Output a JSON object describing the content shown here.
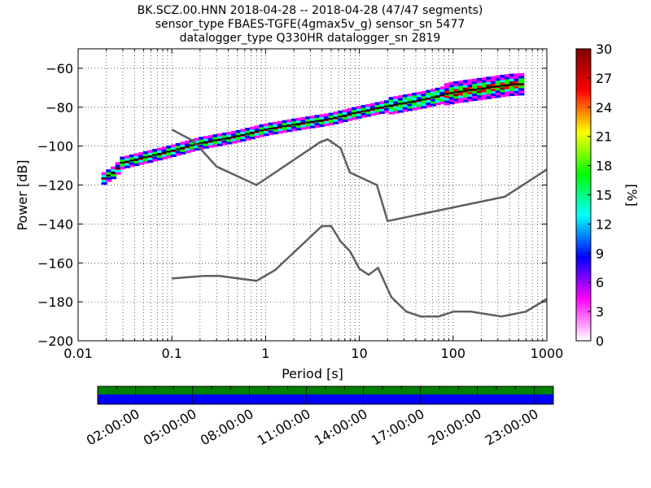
{
  "chart_data": {
    "type": "heatmap",
    "title_lines": [
      "BK.SCZ.00.HNN   2018-04-28 -- 2018-04-28  (47/47 segments)",
      "sensor_type FBAES-TGFE(4gmax5v_g) sensor_sn 5477",
      "datalogger_type Q330HR datalogger_sn 2819"
    ],
    "xlabel": "Period [s]",
    "ylabel": "Power [dB]",
    "xscale": "log",
    "xlim": [
      0.01,
      1000
    ],
    "ylim": [
      -200,
      -50
    ],
    "x_ticks": [
      {
        "value": 0.01,
        "label": "0.01"
      },
      {
        "value": 0.1,
        "label": "0.1"
      },
      {
        "value": 1,
        "label": "1"
      },
      {
        "value": 10,
        "label": "10"
      },
      {
        "value": 100,
        "label": "100"
      },
      {
        "value": 1000,
        "label": "1000"
      }
    ],
    "y_ticks": [
      {
        "value": -60,
        "label": "−60"
      },
      {
        "value": -80,
        "label": "−80"
      },
      {
        "value": -100,
        "label": "−100"
      },
      {
        "value": -120,
        "label": "−120"
      },
      {
        "value": -140,
        "label": "−140"
      },
      {
        "value": -160,
        "label": "−160"
      },
      {
        "value": -180,
        "label": "−180"
      },
      {
        "value": -200,
        "label": "−200"
      }
    ],
    "grid": true,
    "colorbar": {
      "label": "[%]",
      "min": 0,
      "max": 30,
      "ticks": [
        {
          "value": 0,
          "label": "0"
        },
        {
          "value": 3,
          "label": "3"
        },
        {
          "value": 6,
          "label": "6"
        },
        {
          "value": 9,
          "label": "9"
        },
        {
          "value": 12,
          "label": "12"
        },
        {
          "value": 15,
          "label": "15"
        },
        {
          "value": 18,
          "label": "18"
        },
        {
          "value": 21,
          "label": "21"
        },
        {
          "value": 24,
          "label": "24"
        },
        {
          "value": 27,
          "label": "27"
        },
        {
          "value": 30,
          "label": "30"
        }
      ],
      "colors": [
        "#ffffff",
        "#ff00ff",
        "#0000ff",
        "#00ffff",
        "#00ff00",
        "#ffff00",
        "#ff0000",
        "#800000"
      ]
    },
    "psd_band": [
      {
        "period": 0.019,
        "center": -116.5,
        "spread": 1.5
      },
      {
        "period": 0.025,
        "center": -113,
        "spread": 1.5
      },
      {
        "period": 0.03,
        "center": -108.5,
        "spread": 1.5
      },
      {
        "period": 0.05,
        "center": -106,
        "spread": 1.5
      },
      {
        "period": 0.1,
        "center": -102.5,
        "spread": 1.5
      },
      {
        "period": 0.2,
        "center": -98.5,
        "spread": 1.5
      },
      {
        "period": 0.5,
        "center": -95,
        "spread": 1.5
      },
      {
        "period": 1,
        "center": -91.5,
        "spread": 1.5
      },
      {
        "period": 2,
        "center": -89,
        "spread": 1.5
      },
      {
        "period": 5,
        "center": -86,
        "spread": 2
      },
      {
        "period": 10,
        "center": -82.5,
        "spread": 2
      },
      {
        "period": 20,
        "center": -79.5,
        "spread": 2.5
      },
      {
        "period": 50,
        "center": -76,
        "spread": 3
      },
      {
        "period": 100,
        "center": -72.5,
        "spread": 4
      },
      {
        "period": 200,
        "center": -70.5,
        "spread": 4.5
      },
      {
        "period": 400,
        "center": -68.5,
        "spread": 5
      },
      {
        "period": 600,
        "center": -68,
        "spread": 5
      }
    ],
    "series": [
      {
        "color": "#5f5f5f",
        "x": [
          0.1,
          0.17,
          0.3,
          0.8,
          3.8,
          4.6,
          6.3,
          7.9,
          15.4,
          20.0,
          354.8,
          1000
        ],
        "y": [
          -91.5,
          -97.4,
          -110.5,
          -120.0,
          -98.0,
          -96.5,
          -101.0,
          -113.5,
          -120.0,
          -138.5,
          -126.0,
          -112.0
        ]
      },
      {
        "color": "#5f5f5f",
        "x": [
          0.1,
          0.22,
          0.32,
          0.8,
          1.26,
          3.98,
          5.01,
          6.31,
          7.94,
          10.0,
          12.59,
          15.85,
          21.9,
          31.6,
          45.0,
          70.0,
          101.0,
          154.0,
          328.0,
          600.0,
          1000.0
        ],
        "y": [
          -168.0,
          -166.7,
          -166.7,
          -169.2,
          -163.7,
          -141.1,
          -141.1,
          -149.0,
          -154.0,
          -163.0,
          -166.1,
          -162.5,
          -177.5,
          -185.0,
          -187.5,
          -187.5,
          -185.0,
          -185.0,
          -187.5,
          -185.0,
          -178.5
        ]
      }
    ]
  },
  "timeline": {
    "tick_labels": [
      "02:00:00",
      "05:00:00",
      "08:00:00",
      "11:00:00",
      "14:00:00",
      "17:00:00",
      "20:00:00",
      "23:00:00"
    ],
    "rows": [
      {
        "color": "#008000"
      },
      {
        "color": "#0000ff"
      }
    ]
  }
}
